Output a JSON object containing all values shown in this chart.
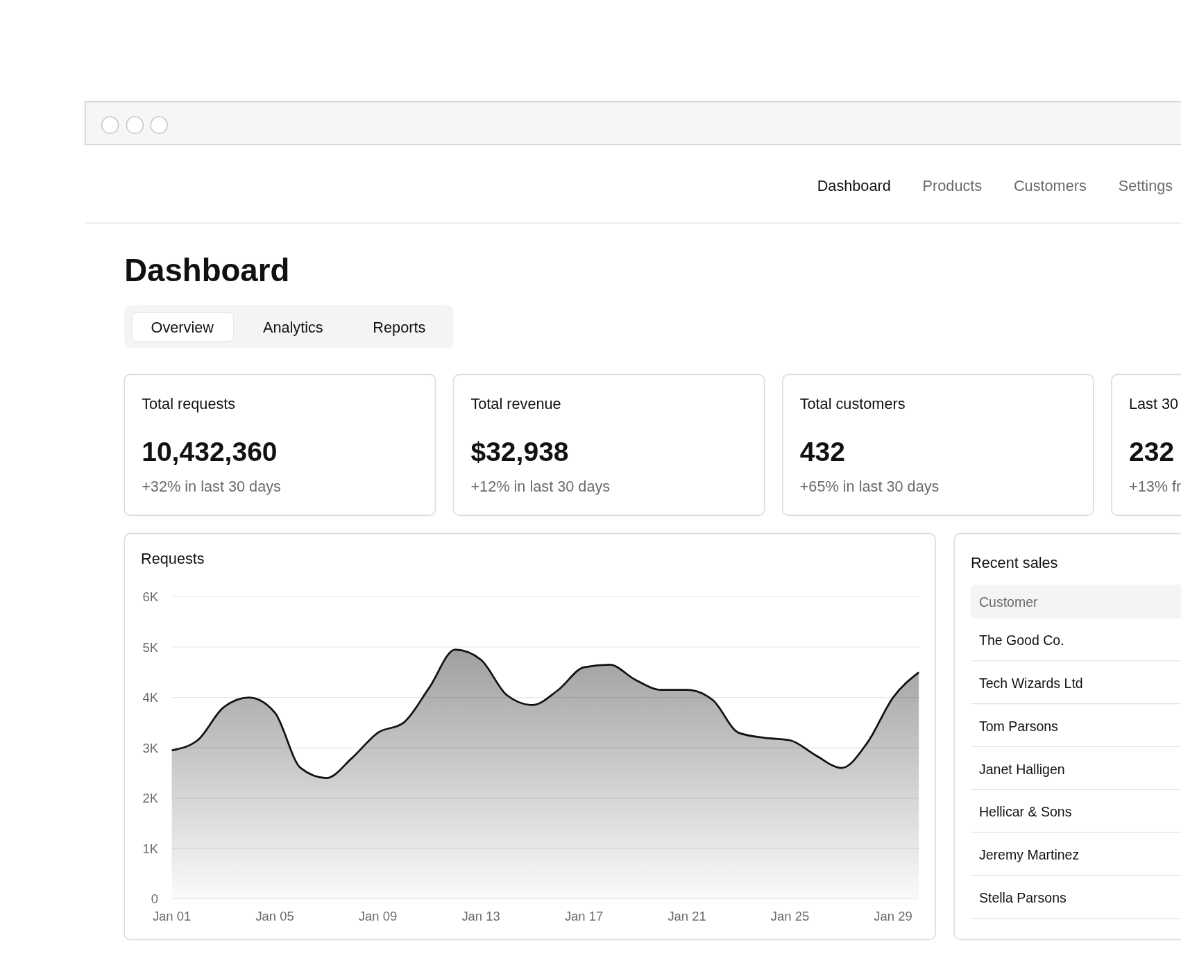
{
  "chart_data": [
    {
      "type": "other",
      "annotations": [
        "Dashboard",
        "Products",
        "Customers",
        "Settings"
      ]
    },
    {
      "type": "other",
      "title": "Dashboard",
      "annotations": [
        "Overview",
        "Analytics",
        "Reports"
      ]
    },
    {
      "type": "other",
      "title": "Total requests",
      "annotations": [
        "10,432,360",
        "+32% in last 30 days"
      ]
    },
    {
      "type": "other",
      "title": "Total revenue",
      "annotations": [
        "$32,938",
        "+12% in last 30 days"
      ]
    },
    {
      "type": "other",
      "title": "Total customers",
      "annotations": [
        "432",
        "+65% in last 30 days"
      ]
    },
    {
      "type": "other",
      "title": "Last 30",
      "annotations": [
        "232",
        "+13% fr"
      ]
    },
    {
      "type": "area",
      "title": "Requests",
      "color": "#111111",
      "grid": "y",
      "categories": [
        "Jan 01",
        null,
        null,
        null,
        "Jan 05",
        null,
        null,
        null,
        "Jan 09",
        null,
        null,
        null,
        "Jan 13",
        null,
        null,
        null,
        "Jan 17",
        null,
        null,
        null,
        "Jan 21",
        null,
        null,
        null,
        "Jan 25",
        null,
        null,
        null,
        "Jan 29",
        null
      ],
      "values": [
        2950,
        3150,
        3800,
        4000,
        3700,
        2600,
        2400,
        2800,
        3300,
        3500,
        4200,
        4950,
        4750,
        4050,
        3850,
        4150,
        4600,
        4650,
        4350,
        4150,
        4150,
        3950,
        3300,
        3200,
        3150,
        2850,
        2600,
        3100,
        4000,
        4500
      ],
      "ylim": [
        0,
        6000
      ],
      "yticks": [
        0,
        {
          "value": 1000,
          "label": "1K"
        },
        {
          "value": 2000,
          "label": "2K"
        },
        {
          "value": 3000,
          "label": "3K"
        },
        {
          "value": 4000,
          "label": "4K"
        },
        {
          "value": 5000,
          "label": "5K"
        },
        {
          "value": 6000,
          "label": "6K"
        }
      ]
    },
    {
      "type": "other",
      "title": "Recent sales",
      "annotations": [
        "Customer",
        "The Good Co.",
        "Tech Wizards Ltd",
        "Tom Parsons",
        "Janet Halligen",
        "Hellicar & Sons",
        "Jeremy Martinez",
        "Stella Parsons"
      ]
    }
  ]
}
